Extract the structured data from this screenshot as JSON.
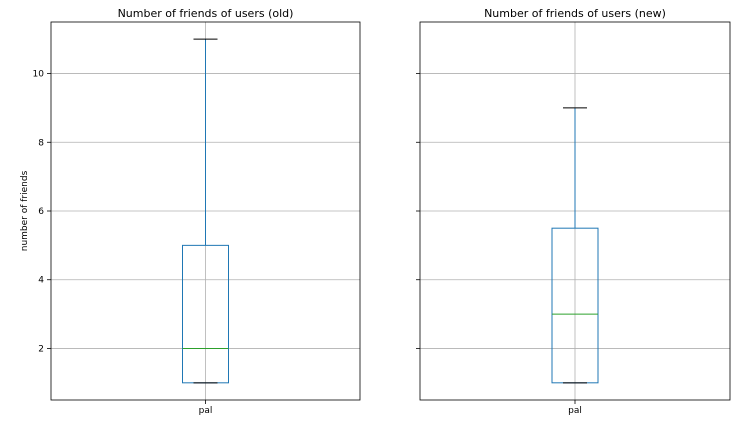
{
  "chart_data": [
    {
      "type": "box",
      "title": "Number of friends of users (old)",
      "xlabel": "",
      "ylabel": "number of friends",
      "categories": [
        "pal"
      ],
      "ylim": [
        0.5,
        11.5
      ],
      "yticks": [
        2,
        4,
        6,
        8,
        10
      ],
      "grid": true,
      "boxes": [
        {
          "category": "pal",
          "min": 1,
          "q1": 1,
          "median": 2,
          "q3": 5,
          "max": 11
        }
      ]
    },
    {
      "type": "box",
      "title": "Number of friends of users (new)",
      "xlabel": "",
      "ylabel": "",
      "categories": [
        "pal"
      ],
      "ylim": [
        0.5,
        11.5
      ],
      "yticks": [
        2,
        4,
        6,
        8,
        10
      ],
      "grid": true,
      "boxes": [
        {
          "category": "pal",
          "min": 1,
          "q1": 1,
          "median": 3,
          "q3": 5.5,
          "max": 9
        }
      ]
    }
  ],
  "colors": {
    "box": "#1f77b4",
    "whisker": "#1f77b4",
    "median": "#2ca02c",
    "cap": "#000000",
    "grid": "#b0b0b0",
    "axis": "#000000"
  }
}
